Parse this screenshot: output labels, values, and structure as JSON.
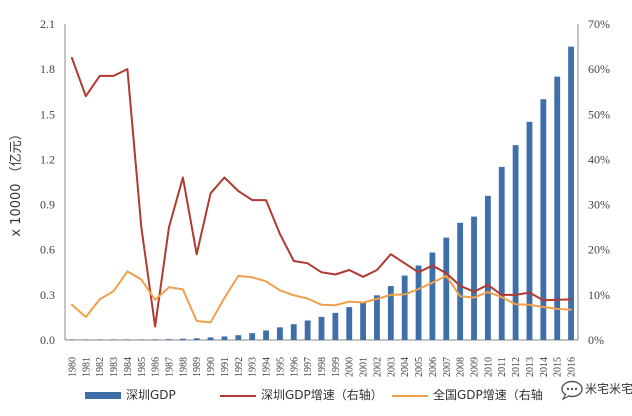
{
  "chart_data": {
    "type": "bar",
    "title": "",
    "xlabel": "",
    "ylabel": "x 10000 （亿元）",
    "ylim": [
      0,
      2.1
    ],
    "y2lim": [
      0,
      70
    ],
    "yticks": [
      "0.0",
      "0.3",
      "0.6",
      "0.9",
      "1.2",
      "1.5",
      "1.8",
      "2.1"
    ],
    "y2ticks": [
      "0%",
      "10%",
      "20%",
      "30%",
      "40%",
      "50%",
      "60%",
      "70%"
    ],
    "categories": [
      "1980",
      "1981",
      "1982",
      "1983",
      "1984",
      "1985",
      "1986",
      "1987",
      "1988",
      "1989",
      "1990",
      "1991",
      "1992",
      "1993",
      "1994",
      "1995",
      "1996",
      "1997",
      "1998",
      "1999",
      "2000",
      "2001",
      "2002",
      "2003",
      "2004",
      "2005",
      "2006",
      "2007",
      "2008",
      "2009",
      "2010",
      "2011",
      "2012",
      "2013",
      "2014",
      "2015",
      "2016"
    ],
    "series": [
      {
        "name": "深圳GDP",
        "type": "bar",
        "axis": "left",
        "color": "#3f6fa8",
        "values": [
          0.0003,
          0.0005,
          0.0008,
          0.0013,
          0.0023,
          0.0039,
          0.0042,
          0.0056,
          0.0087,
          0.0116,
          0.0172,
          0.0237,
          0.0317,
          0.0453,
          0.0635,
          0.0843,
          0.1048,
          0.1297,
          0.1535,
          0.1804,
          0.2187,
          0.2482,
          0.297,
          0.3585,
          0.4282,
          0.4951,
          0.5814,
          0.6802,
          0.7787,
          0.8201,
          0.9582,
          1.1506,
          1.295,
          1.45,
          1.6002,
          1.7503,
          1.9493
        ]
      },
      {
        "name": "深圳GDP增速（右轴）",
        "type": "line",
        "axis": "right",
        "color": "#b03a30",
        "values": [
          62.5,
          54,
          58.5,
          58.5,
          60,
          25,
          3,
          25,
          36,
          19,
          32.5,
          36,
          33,
          31,
          31,
          23.5,
          17.5,
          17,
          15,
          14.5,
          15.5,
          14,
          15.5,
          19,
          17,
          15,
          16.5,
          14.8,
          12,
          10.7,
          12.2,
          10,
          10,
          10.5,
          8.8,
          8.9,
          9.0
        ]
      },
      {
        "name": "全国GDP增速（右轴）",
        "type": "line",
        "axis": "right",
        "color": "#f0a04b",
        "values": [
          7.8,
          5.1,
          9.0,
          10.8,
          15.2,
          13.4,
          8.9,
          11.7,
          11.2,
          4.2,
          3.9,
          9.3,
          14.2,
          13.9,
          13.0,
          11.0,
          9.9,
          9.2,
          7.8,
          7.7,
          8.5,
          8.3,
          9.1,
          10.0,
          10.1,
          11.3,
          12.7,
          14.2,
          9.7,
          9.4,
          10.6,
          9.5,
          7.9,
          7.8,
          7.3,
          6.9,
          6.7
        ]
      }
    ],
    "legend": [
      {
        "label": "深圳GDP",
        "kind": "bar",
        "color": "#3f6fa8"
      },
      {
        "label": "深圳GDP增速（右轴）",
        "kind": "line",
        "color": "#b03a30"
      },
      {
        "label": "全国GDP增速（右轴",
        "kind": "line",
        "color": "#f0a04b"
      }
    ],
    "legend_position": "bottom",
    "grid": false
  },
  "watermark": {
    "text": "米宅米宅",
    "icon": "chat-bubble-icon"
  }
}
